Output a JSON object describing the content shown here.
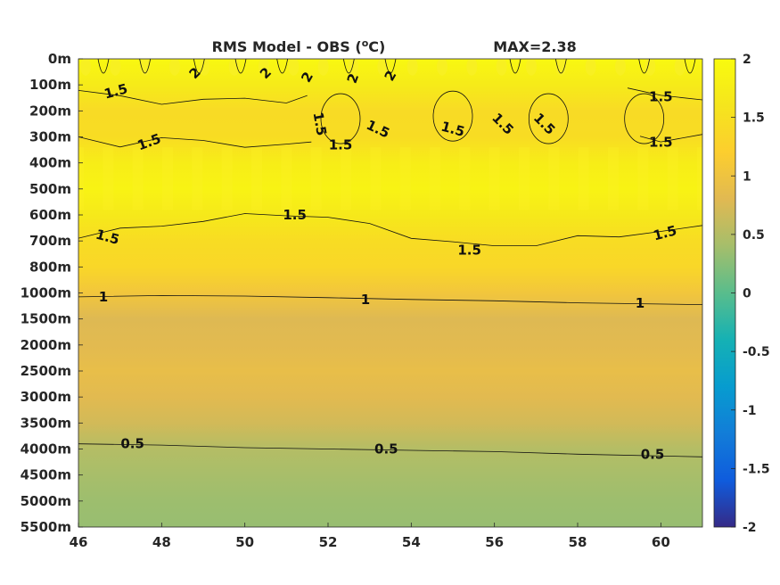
{
  "chart_data": {
    "type": "heatmap",
    "title_main": "RMS Model - OBS (",
    "title_sup": "o",
    "title_unit": "C)",
    "max_label": "MAX=2.38",
    "x_ticks": [
      46,
      48,
      50,
      52,
      54,
      56,
      58,
      60
    ],
    "xlim": [
      46,
      61
    ],
    "y_ticks": [
      "0m",
      "100m",
      "200m",
      "300m",
      "400m",
      "500m",
      "600m",
      "700m",
      "800m",
      "1000m",
      "1500m",
      "2000m",
      "2500m",
      "3000m",
      "3500m",
      "4000m",
      "4500m",
      "5000m",
      "5500m"
    ],
    "clim": [
      -2,
      2
    ],
    "colorbar_ticks": [
      2,
      1.5,
      1,
      0.5,
      0,
      -0.5,
      -1,
      -1.5,
      -2
    ],
    "depth_profile": [
      {
        "level": 0,
        "value": 1.95
      },
      {
        "level": 1,
        "value": 1.7
      },
      {
        "level": 2,
        "value": 1.42
      },
      {
        "level": 3,
        "value": 1.45
      },
      {
        "level": 4,
        "value": 1.75
      },
      {
        "level": 5,
        "value": 1.85
      },
      {
        "level": 6,
        "value": 1.68
      },
      {
        "level": 7,
        "value": 1.45
      },
      {
        "level": 8,
        "value": 1.35
      },
      {
        "level": 9,
        "value": 1.05
      },
      {
        "level": 10,
        "value": 0.78
      },
      {
        "level": 11,
        "value": 0.82
      },
      {
        "level": 12,
        "value": 0.9
      },
      {
        "level": 13,
        "value": 0.82
      },
      {
        "level": 14,
        "value": 0.7
      },
      {
        "level": 15,
        "value": 0.5
      },
      {
        "level": 16,
        "value": 0.42
      },
      {
        "level": 17,
        "value": 0.36
      },
      {
        "level": 18,
        "value": 0.33
      }
    ],
    "contour_labels": [
      {
        "text": "2",
        "x": 48.8,
        "level": 0.55,
        "angle": -45
      },
      {
        "text": "2",
        "x": 50.5,
        "level": 0.55,
        "angle": -45
      },
      {
        "text": "2",
        "x": 51.5,
        "level": 0.7,
        "angle": -60
      },
      {
        "text": "2",
        "x": 52.6,
        "level": 0.75,
        "angle": -70
      },
      {
        "text": "2",
        "x": 53.5,
        "level": 0.65,
        "angle": -60
      },
      {
        "text": "1.5",
        "x": 46.9,
        "level": 1.25,
        "angle": -15
      },
      {
        "text": "1.5",
        "x": 47.7,
        "level": 3.2,
        "angle": -20
      },
      {
        "text": "1.5",
        "x": 51.8,
        "level": 2.5,
        "angle": 80
      },
      {
        "text": "1.5",
        "x": 52.3,
        "level": 3.3,
        "angle": 0
      },
      {
        "text": "1.5",
        "x": 53.2,
        "level": 2.7,
        "angle": 25
      },
      {
        "text": "1.5",
        "x": 55.0,
        "level": 2.7,
        "angle": 15
      },
      {
        "text": "1.5",
        "x": 56.2,
        "level": 2.5,
        "angle": 45
      },
      {
        "text": "1.5",
        "x": 57.2,
        "level": 2.5,
        "angle": 45
      },
      {
        "text": "1.5",
        "x": 60.0,
        "level": 1.45,
        "angle": 0
      },
      {
        "text": "1.5",
        "x": 60.0,
        "level": 3.2,
        "angle": 0
      },
      {
        "text": "1.5",
        "x": 46.7,
        "level": 6.85,
        "angle": 15
      },
      {
        "text": "1.5",
        "x": 51.2,
        "level": 6.0,
        "angle": 0
      },
      {
        "text": "1.5",
        "x": 55.4,
        "level": 7.35,
        "angle": 0
      },
      {
        "text": "1.5",
        "x": 60.1,
        "level": 6.7,
        "angle": -15
      },
      {
        "text": "1",
        "x": 46.6,
        "level": 9.15,
        "angle": 0
      },
      {
        "text": "1",
        "x": 52.9,
        "level": 9.25,
        "angle": 0
      },
      {
        "text": "1",
        "x": 59.5,
        "level": 9.4,
        "angle": 0
      },
      {
        "text": "0.5",
        "x": 47.3,
        "level": 14.8,
        "angle": 0
      },
      {
        "text": "0.5",
        "x": 53.4,
        "level": 15.0,
        "angle": 0
      },
      {
        "text": "0.5",
        "x": 59.8,
        "level": 15.2,
        "angle": 0
      }
    ],
    "contour_lines": [
      {
        "value": 1,
        "points": [
          [
            46,
            9.15
          ],
          [
            48,
            9.1
          ],
          [
            50,
            9.12
          ],
          [
            52,
            9.18
          ],
          [
            54,
            9.25
          ],
          [
            56,
            9.3
          ],
          [
            58,
            9.38
          ],
          [
            61,
            9.45
          ]
        ]
      },
      {
        "value": 0.5,
        "points": [
          [
            46,
            14.8
          ],
          [
            48,
            14.85
          ],
          [
            50,
            14.95
          ],
          [
            52,
            15.0
          ],
          [
            54,
            15.05
          ],
          [
            56,
            15.1
          ],
          [
            58,
            15.2
          ],
          [
            61,
            15.3
          ]
        ]
      },
      {
        "value": 1.5,
        "points": [
          [
            46,
            6.8
          ],
          [
            47,
            6.6
          ],
          [
            48,
            6.4
          ],
          [
            49,
            6.2
          ],
          [
            50,
            6.05
          ],
          [
            51,
            5.95
          ],
          [
            52,
            6.1
          ],
          [
            53,
            6.4
          ],
          [
            54,
            6.8
          ],
          [
            55,
            7.1
          ],
          [
            56,
            7.2
          ],
          [
            57,
            7.1
          ],
          [
            58,
            6.9
          ],
          [
            59,
            6.8
          ],
          [
            60,
            6.6
          ],
          [
            61,
            6.5
          ]
        ]
      },
      {
        "value": 1.5,
        "points": [
          [
            46,
            1.2
          ],
          [
            47,
            1.5
          ],
          [
            48,
            1.65
          ],
          [
            49,
            1.6
          ],
          [
            50,
            1.55
          ],
          [
            51,
            1.6
          ],
          [
            51.5,
            1.5
          ]
        ]
      },
      {
        "value": 1.5,
        "points": [
          [
            59.2,
            1.2
          ],
          [
            60,
            1.4
          ],
          [
            61,
            1.5
          ]
        ]
      },
      {
        "value": 1.5,
        "points": [
          [
            46,
            3.1
          ],
          [
            47,
            3.3
          ],
          [
            48,
            3.05
          ],
          [
            49,
            3.2
          ],
          [
            50,
            3.3
          ],
          [
            51,
            3.35
          ],
          [
            51.6,
            3.2
          ]
        ]
      },
      {
        "value": 1.5,
        "points": [
          [
            59.5,
            3.0
          ],
          [
            60,
            3.1
          ],
          [
            61,
            3.0
          ]
        ]
      }
    ]
  }
}
